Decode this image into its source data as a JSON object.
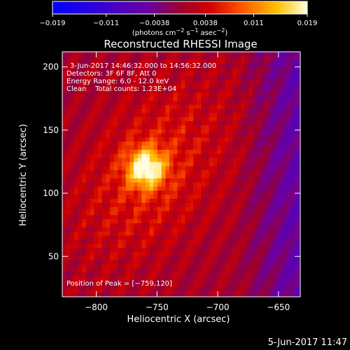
{
  "chart_data": {
    "type": "heatmap",
    "title": "Reconstructed RHESSI Image",
    "xlabel": "Heliocentric X (arcsec)",
    "ylabel": "Heliocentric Y (arcsec)",
    "xlim": [
      -828,
      -632
    ],
    "ylim": [
      18,
      212
    ],
    "x_ticks": [
      -800,
      -750,
      -700,
      -650
    ],
    "x_tick_labels": [
      "−800",
      "−750",
      "−700",
      "−650"
    ],
    "y_ticks": [
      50,
      100,
      150,
      200
    ],
    "y_tick_labels": [
      "50",
      "100",
      "150",
      "200"
    ],
    "colorbar": {
      "range": [
        -0.019,
        0.019
      ],
      "ticks": [
        -0.019,
        -0.011,
        -0.0038,
        0.0038,
        0.011,
        0.019
      ],
      "tick_labels": [
        "−0.019",
        "−0.011",
        "−0.0038",
        "0.0038",
        "0.011",
        "0.019"
      ],
      "units_label": "(photons cm",
      "units_sup1": "−2",
      "units_mid": " s",
      "units_sup2": "−1",
      "units_mid2": " asec",
      "units_sup3": "−2",
      "units_end": ")"
    },
    "annotations": [
      "3-Jun-2017 14:46:32.000 to 14:56:32.000",
      "Detectors: 3F 6F 8F, Att 0",
      "Energy Range: 6.0 - 12.0 keV",
      "Clean    Total counts: 1.23E+04"
    ],
    "peak_label": "Position of Peak = [−759,120]",
    "peak": {
      "x": -759,
      "y": 120,
      "value": 0.019
    }
  },
  "footer": {
    "date": "5-Jun-2017 11:47"
  }
}
